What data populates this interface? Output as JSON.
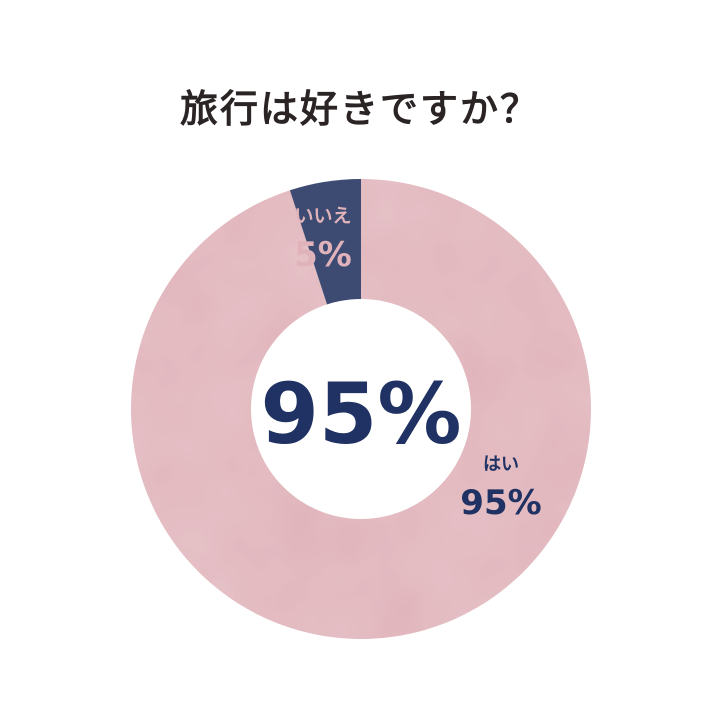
{
  "title": "旅行は好きですか？",
  "chart_data": {
    "type": "pie",
    "title": "旅行は好きですか？",
    "center_label": "95%",
    "slices": [
      {
        "label": "はい",
        "value": 95,
        "value_label": "95%",
        "color": "#e0b3ba",
        "label_color": "#1f3263"
      },
      {
        "label": "いいえ",
        "value": 5,
        "value_label": "5%",
        "color": "#3d4b72",
        "label_color": "#e0b3ba"
      }
    ],
    "center_color": "#1f3263"
  }
}
